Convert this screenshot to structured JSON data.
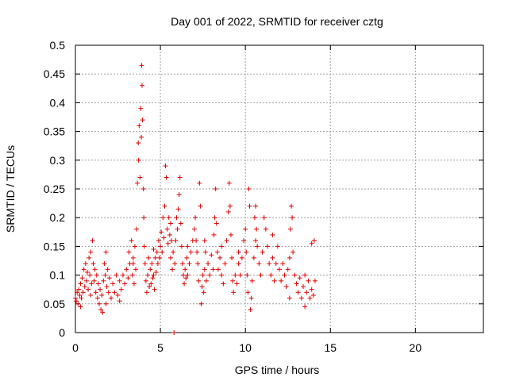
{
  "chart_data": {
    "type": "scatter",
    "title": "Day 001 of 2022, SRMTID for receiver cztg",
    "xlabel": "GPS time / hours",
    "ylabel": "SRMTID / TECUs",
    "xlim": [
      0,
      24
    ],
    "ylim": [
      0,
      0.5
    ],
    "xticks": [
      0,
      5,
      10,
      15,
      20
    ],
    "yticks": [
      0,
      0.05,
      0.1,
      0.15,
      0.2,
      0.25,
      0.3,
      0.35,
      0.4,
      0.45,
      0.5
    ],
    "xtick_labels": [
      "0",
      "5",
      "10",
      "15",
      "20"
    ],
    "ytick_labels": [
      "0",
      "0.05",
      "0.1",
      "0.15",
      "0.2",
      "0.25",
      "0.3",
      "0.35",
      "0.4",
      "0.45",
      "0.5"
    ],
    "grid": true,
    "marker": "+",
    "marker_color": "#e00000",
    "series": [
      {
        "name": "SRMTID",
        "points": [
          [
            0.0,
            0.06
          ],
          [
            0.05,
            0.055
          ],
          [
            0.1,
            0.07
          ],
          [
            0.15,
            0.05
          ],
          [
            0.2,
            0.075
          ],
          [
            0.25,
            0.065
          ],
          [
            0.3,
            0.085
          ],
          [
            0.35,
            0.06
          ],
          [
            0.4,
            0.095
          ],
          [
            0.45,
            0.07
          ],
          [
            0.5,
            0.11
          ],
          [
            0.55,
            0.08
          ],
          [
            0.6,
            0.12
          ],
          [
            0.65,
            0.09
          ],
          [
            0.7,
            0.105
          ],
          [
            0.75,
            0.075
          ],
          [
            0.8,
            0.13
          ],
          [
            0.85,
            0.1
          ],
          [
            0.9,
            0.14
          ],
          [
            0.95,
            0.085
          ],
          [
            1.0,
            0.16
          ],
          [
            1.05,
            0.12
          ],
          [
            1.1,
            0.09
          ],
          [
            1.15,
            0.11
          ],
          [
            1.2,
            0.07
          ],
          [
            1.25,
            0.1
          ],
          [
            1.3,
            0.06
          ],
          [
            1.35,
            0.085
          ],
          [
            1.4,
            0.05
          ],
          [
            1.45,
            0.075
          ],
          [
            1.5,
            0.04
          ],
          [
            1.55,
            0.065
          ],
          [
            1.6,
            0.035
          ],
          [
            1.65,
            0.09
          ],
          [
            1.7,
            0.12
          ],
          [
            1.75,
            0.1
          ],
          [
            1.8,
            0.14
          ],
          [
            1.85,
            0.08
          ],
          [
            1.9,
            0.11
          ],
          [
            1.95,
            0.07
          ],
          [
            2.0,
            0.095
          ],
          [
            2.1,
            0.06
          ],
          [
            2.2,
            0.085
          ],
          [
            2.3,
            0.07
          ],
          [
            2.4,
            0.1
          ],
          [
            2.5,
            0.065
          ],
          [
            2.6,
            0.09
          ],
          [
            2.7,
            0.075
          ],
          [
            2.8,
            0.1
          ],
          [
            2.9,
            0.085
          ],
          [
            3.0,
            0.11
          ],
          [
            3.1,
            0.095
          ],
          [
            3.15,
            0.14
          ],
          [
            3.2,
            0.12
          ],
          [
            3.3,
            0.16
          ],
          [
            3.35,
            0.1
          ],
          [
            3.4,
            0.13
          ],
          [
            3.45,
            0.085
          ],
          [
            3.5,
            0.15
          ],
          [
            3.55,
            0.11
          ],
          [
            3.6,
            0.18
          ],
          [
            3.65,
            0.26
          ],
          [
            3.7,
            0.33
          ],
          [
            3.72,
            0.3
          ],
          [
            3.75,
            0.36
          ],
          [
            3.8,
            0.27
          ],
          [
            3.85,
            0.39
          ],
          [
            3.88,
            0.34
          ],
          [
            3.9,
            0.465
          ],
          [
            3.92,
            0.43
          ],
          [
            3.95,
            0.37
          ],
          [
            4.0,
            0.25
          ],
          [
            4.02,
            0.2
          ],
          [
            4.05,
            0.15
          ],
          [
            4.1,
            0.12
          ],
          [
            4.15,
            0.09
          ],
          [
            4.2,
            0.07
          ],
          [
            4.25,
            0.1
          ],
          [
            4.3,
            0.13
          ],
          [
            4.35,
            0.08
          ],
          [
            4.4,
            0.11
          ],
          [
            4.45,
            0.085
          ],
          [
            4.5,
            0.12
          ],
          [
            4.55,
            0.095
          ],
          [
            4.6,
            0.1
          ],
          [
            4.65,
            0.075
          ],
          [
            4.7,
            0.13
          ],
          [
            4.75,
            0.105
          ],
          [
            4.8,
            0.14
          ],
          [
            4.85,
            0.12
          ],
          [
            4.9,
            0.16
          ],
          [
            4.95,
            0.13
          ],
          [
            5.0,
            0.15
          ],
          [
            5.05,
            0.175
          ],
          [
            5.1,
            0.14
          ],
          [
            5.15,
            0.2
          ],
          [
            5.2,
            0.165
          ],
          [
            5.25,
            0.22
          ],
          [
            5.3,
            0.29
          ],
          [
            5.35,
            0.27
          ],
          [
            5.4,
            0.18
          ],
          [
            5.45,
            0.155
          ],
          [
            5.5,
            0.2
          ],
          [
            5.55,
            0.17
          ],
          [
            5.6,
            0.13
          ],
          [
            5.65,
            0.16
          ],
          [
            5.7,
            0.11
          ],
          [
            5.75,
            0.14
          ],
          [
            5.8,
            0.0
          ],
          [
            5.85,
            0.12
          ],
          [
            5.9,
            0.16
          ],
          [
            5.95,
            0.2
          ],
          [
            6.0,
            0.18
          ],
          [
            6.05,
            0.215
          ],
          [
            6.1,
            0.24
          ],
          [
            6.15,
            0.27
          ],
          [
            6.2,
            0.19
          ],
          [
            6.25,
            0.15
          ],
          [
            6.3,
            0.12
          ],
          [
            6.35,
            0.1
          ],
          [
            6.4,
            0.085
          ],
          [
            6.45,
            0.11
          ],
          [
            6.5,
            0.095
          ],
          [
            6.55,
            0.13
          ],
          [
            6.6,
            0.1
          ],
          [
            6.7,
            0.12
          ],
          [
            6.8,
            0.14
          ],
          [
            6.9,
            0.16
          ],
          [
            7.0,
            0.18
          ],
          [
            7.05,
            0.2
          ],
          [
            7.1,
            0.16
          ],
          [
            7.15,
            0.14
          ],
          [
            7.2,
            0.12
          ],
          [
            7.25,
            0.09
          ],
          [
            7.3,
            0.26
          ],
          [
            7.35,
            0.22
          ],
          [
            7.4,
            0.05
          ],
          [
            7.45,
            0.08
          ],
          [
            7.5,
            0.1
          ],
          [
            7.55,
            0.07
          ],
          [
            7.6,
            0.11
          ],
          [
            7.65,
            0.14
          ],
          [
            7.7,
            0.09
          ],
          [
            7.8,
            0.12
          ],
          [
            7.9,
            0.1
          ],
          [
            8.0,
            0.135
          ],
          [
            8.1,
            0.11
          ],
          [
            8.15,
            0.17
          ],
          [
            8.2,
            0.2
          ],
          [
            8.25,
            0.25
          ],
          [
            8.3,
            0.19
          ],
          [
            8.35,
            0.14
          ],
          [
            8.4,
            0.11
          ],
          [
            8.5,
            0.13
          ],
          [
            8.6,
            0.1
          ],
          [
            8.7,
            0.085
          ],
          [
            8.8,
            0.12
          ],
          [
            8.9,
            0.16
          ],
          [
            9.0,
            0.21
          ],
          [
            9.05,
            0.26
          ],
          [
            9.1,
            0.22
          ],
          [
            9.15,
            0.17
          ],
          [
            9.2,
            0.13
          ],
          [
            9.25,
            0.09
          ],
          [
            9.3,
            0.07
          ],
          [
            9.4,
            0.1
          ],
          [
            9.5,
            0.085
          ],
          [
            9.6,
            0.12
          ],
          [
            9.7,
            0.1
          ],
          [
            9.8,
            0.13
          ],
          [
            9.9,
            0.16
          ],
          [
            10.0,
            0.18
          ],
          [
            10.05,
            0.14
          ],
          [
            10.1,
            0.1
          ],
          [
            10.15,
            0.07
          ],
          [
            10.2,
            0.25
          ],
          [
            10.25,
            0.22
          ],
          [
            10.3,
            0.04
          ],
          [
            10.35,
            0.06
          ],
          [
            10.4,
            0.09
          ],
          [
            10.5,
            0.13
          ],
          [
            10.55,
            0.2
          ],
          [
            10.6,
            0.22
          ],
          [
            10.65,
            0.18
          ],
          [
            10.7,
            0.15
          ],
          [
            10.8,
            0.12
          ],
          [
            10.9,
            0.1
          ],
          [
            11.0,
            0.14
          ],
          [
            11.1,
            0.2
          ],
          [
            11.2,
            0.18
          ],
          [
            11.3,
            0.15
          ],
          [
            11.4,
            0.12
          ],
          [
            11.5,
            0.1
          ],
          [
            11.6,
            0.13
          ],
          [
            11.7,
            0.09
          ],
          [
            11.8,
            0.12
          ],
          [
            11.9,
            0.15
          ],
          [
            12.0,
            0.11
          ],
          [
            12.1,
            0.09
          ],
          [
            12.2,
            0.12
          ],
          [
            12.3,
            0.1
          ],
          [
            12.4,
            0.08
          ],
          [
            12.5,
            0.11
          ],
          [
            12.6,
            0.13
          ],
          [
            12.65,
            0.18
          ],
          [
            12.7,
            0.22
          ],
          [
            12.75,
            0.2
          ],
          [
            12.8,
            0.14
          ],
          [
            12.9,
            0.1
          ],
          [
            13.0,
            0.085
          ],
          [
            13.1,
            0.07
          ],
          [
            13.2,
            0.095
          ],
          [
            13.3,
            0.06
          ],
          [
            13.4,
            0.08
          ],
          [
            13.5,
            0.1
          ],
          [
            13.6,
            0.07
          ],
          [
            13.7,
            0.09
          ],
          [
            13.8,
            0.06
          ],
          [
            13.9,
            0.075
          ],
          [
            14.0,
            0.065
          ],
          [
            14.05,
            0.16
          ],
          [
            14.1,
            0.09
          ],
          [
            0.3,
            0.045
          ],
          [
            0.9,
            0.065
          ],
          [
            1.8,
            0.05
          ],
          [
            2.6,
            0.055
          ],
          [
            3.4,
            0.12
          ],
          [
            4.6,
            0.145
          ],
          [
            5.6,
            0.19
          ],
          [
            6.6,
            0.15
          ],
          [
            7.6,
            0.16
          ],
          [
            8.6,
            0.15
          ],
          [
            9.6,
            0.14
          ],
          [
            10.6,
            0.16
          ],
          [
            11.6,
            0.17
          ],
          [
            12.6,
            0.06
          ],
          [
            13.5,
            0.045
          ],
          [
            13.9,
            0.155
          ]
        ]
      }
    ]
  }
}
